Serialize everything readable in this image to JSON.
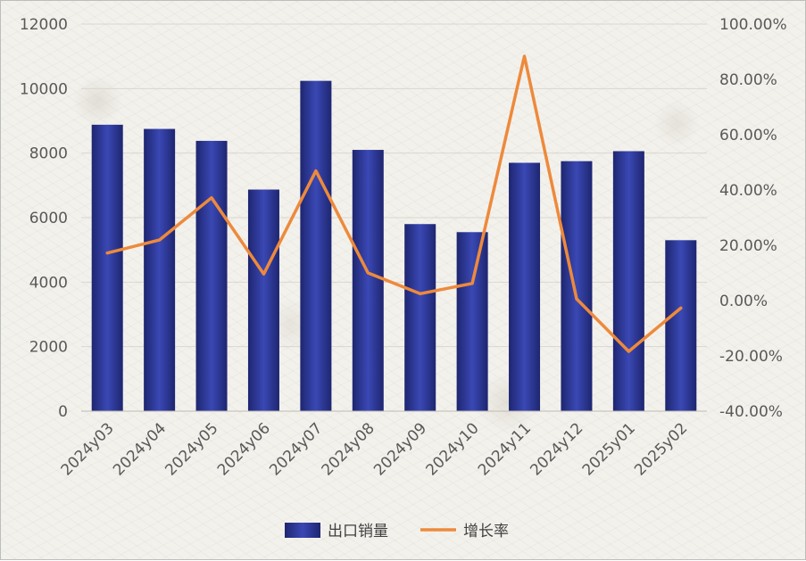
{
  "chart_data": {
    "type": "bar",
    "categories": [
      "2024y03",
      "2024y04",
      "2024y05",
      "2024y06",
      "2024y07",
      "2024y08",
      "2024y09",
      "2024y10",
      "2024y11",
      "2024y12",
      "2025y01",
      "2025y02"
    ],
    "series": [
      {
        "name": "出口销量",
        "type": "bar",
        "axis": "left",
        "color": "#2a3590",
        "values": [
          8880,
          8750,
          8380,
          6870,
          10240,
          8100,
          5800,
          5550,
          7700,
          7750,
          8060,
          5300
        ]
      },
      {
        "name": "增长率",
        "type": "line",
        "axis": "right",
        "color": "#ed8a3c",
        "values": [
          17.2,
          21.9,
          37.2,
          9.6,
          46.9,
          10.0,
          2.5,
          6.2,
          88.4,
          0.6,
          -18.4,
          -2.7
        ]
      }
    ],
    "y_left": {
      "min": 0,
      "max": 12000,
      "ticks": [
        0,
        2000,
        4000,
        6000,
        8000,
        10000,
        12000
      ],
      "tick_labels": [
        "0",
        "2000",
        "4000",
        "6000",
        "8000",
        "10000",
        "12000"
      ]
    },
    "y_right": {
      "min": -40,
      "max": 100,
      "ticks": [
        -40,
        -20,
        0,
        20,
        40,
        60,
        80,
        100
      ],
      "tick_labels": [
        "-40.00%",
        "-20.00%",
        "0.00%",
        "20.00%",
        "40.00%",
        "60.00%",
        "80.00%",
        "100.00%"
      ]
    },
    "grid": true,
    "legend_position": "bottom"
  }
}
